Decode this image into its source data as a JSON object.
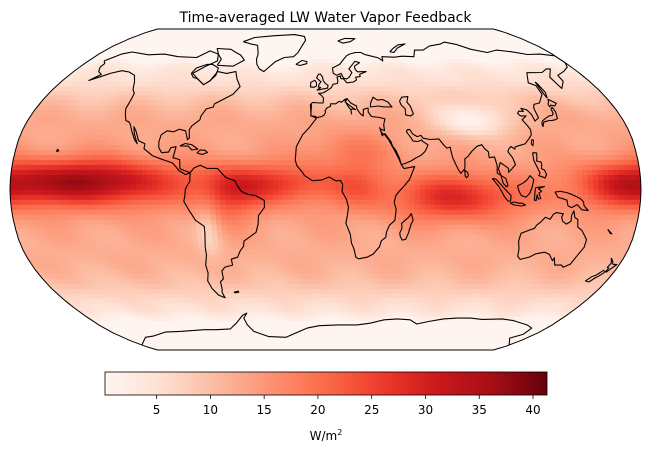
{
  "title": "Time-averaged LW Water Vapor Feedback",
  "colorbar": {
    "colormap": "Reds",
    "range": [
      0.2,
      41.3
    ],
    "ticks": [
      5,
      10,
      15,
      20,
      25,
      30,
      35,
      40
    ],
    "tick_labels": [
      "5",
      "10",
      "15",
      "20",
      "25",
      "30",
      "35",
      "40"
    ],
    "label_main": "W/m",
    "label_sup": "2",
    "stops": [
      "#fff5f0",
      "#fee0d2",
      "#fcbba1",
      "#fc9272",
      "#fb6a4a",
      "#ef3b2c",
      "#cb181d",
      "#a50f15",
      "#67000d"
    ]
  },
  "map": {
    "projection": "robinson",
    "coastline_color": "#000000",
    "field_description_values": {
      "tropical_pacific_max": 41,
      "tropical_atlantic": 30,
      "indian_ocean_tropics": 32,
      "midlatitude_oceans": 14,
      "polar_regions": 2,
      "tibet_himalaya": 3,
      "sahara": 18,
      "amazon": 22
    }
  }
}
